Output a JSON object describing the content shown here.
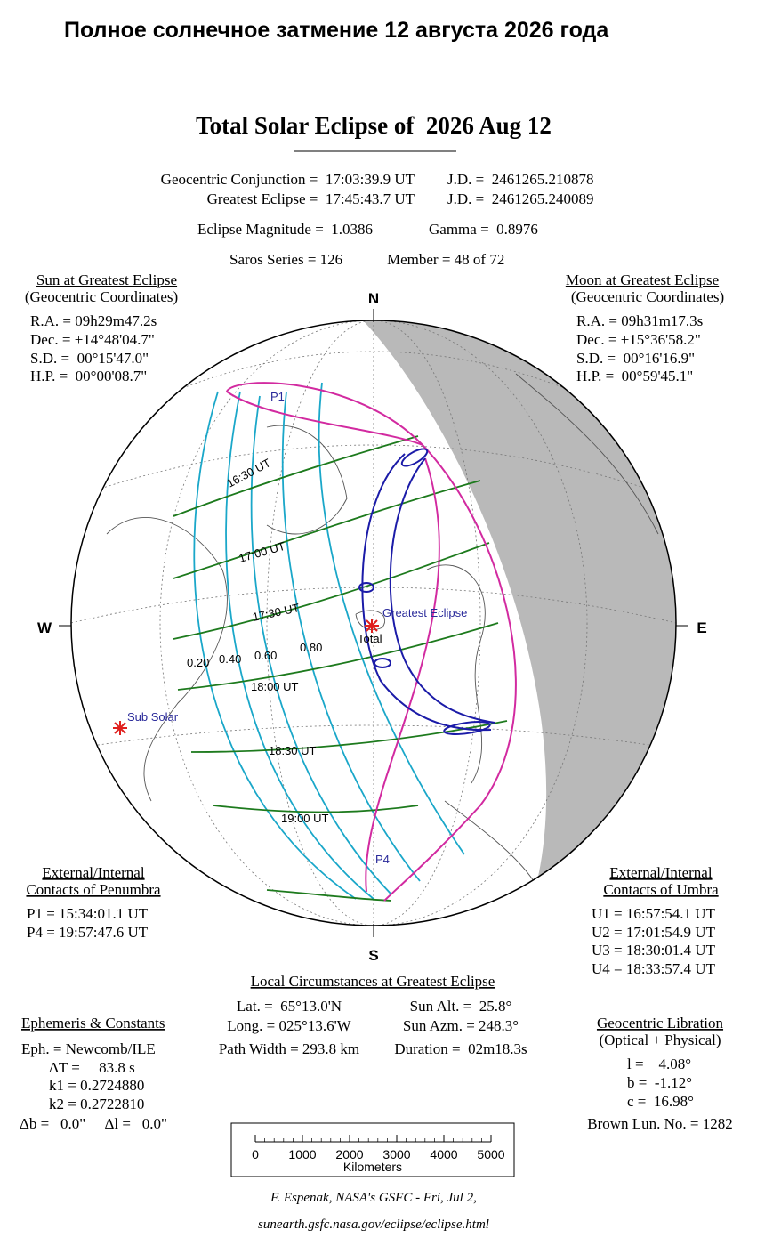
{
  "russian_title": "Полное солнечное затмение 12 августа 2026 года",
  "title": "Total Solar Eclipse of  2026 Aug 12",
  "summary": {
    "rows": [
      [
        "Geocentric Conjunction =  17:03:39.9 UT",
        "J.D. =  2461265.210878"
      ],
      [
        "Greatest Eclipse =  17:45:43.7 UT",
        "J.D. =  2461265.240089"
      ],
      [
        "Eclipse Magnitude =  1.0386",
        "Gamma =  0.8976"
      ],
      [
        "Saros Series = 126",
        "Member = 48 of 72"
      ]
    ]
  },
  "sun": {
    "title": "Sun at Greatest Eclipse",
    "subtitle": "(Geocentric Coordinates)",
    "lines": [
      "R.A. = 09h29m47.2s",
      "Dec. = +14°48'04.7\"",
      "S.D. =  00°15'47.0\"",
      "H.P. =  00°00'08.7\""
    ]
  },
  "moon": {
    "title": "Moon at Greatest Eclipse",
    "subtitle": "(Geocentric Coordinates)",
    "lines": [
      "R.A. = 09h31m17.3s",
      "Dec. = +15°36'58.2\"",
      "S.D. =  00°16'16.9\"",
      "H.P. =  00°59'45.1\""
    ]
  },
  "map": {
    "compass": {
      "n": "N",
      "s": "S",
      "w": "W",
      "e": "E"
    },
    "greatest_eclipse": "Greatest Eclipse",
    "total": "Total",
    "sub_solar": "Sub Solar",
    "p1": "P1",
    "p4": "P4",
    "times": [
      "16:30 UT",
      "17:00 UT",
      "17:30 UT",
      "18:00 UT",
      "18:30 UT",
      "19:00 UT"
    ],
    "magnitudes": [
      "0.20",
      "0.40",
      "0.60",
      "0.80"
    ]
  },
  "penumbra": {
    "title": [
      "External/Internal",
      "Contacts of Penumbra"
    ],
    "lines": [
      "P1 = 15:34:01.1 UT",
      "P4 = 19:57:47.6 UT"
    ]
  },
  "umbra": {
    "title": [
      "External/Internal",
      "Contacts of Umbra"
    ],
    "lines": [
      "U1 = 16:57:54.1 UT",
      "U2 = 17:01:54.9 UT",
      "U3 = 18:30:01.4 UT",
      "U4 = 18:33:57.4 UT"
    ]
  },
  "local": {
    "title": "Local Circumstances at Greatest Eclipse",
    "rows": [
      [
        "Lat. =  65°13.0'N",
        "Sun Alt. =  25.8°"
      ],
      [
        "Long. = 025°13.6'W",
        "Sun Azm. = 248.3°"
      ],
      [
        "Path Width = 293.8 km",
        "Duration =  02m18.3s"
      ]
    ]
  },
  "ephemeris": {
    "title": "Ephemeris & Constants",
    "lines": [
      "Eph. = Newcomb/ILE",
      "ΔT =     83.8 s",
      "k1 = 0.2724880",
      "k2 = 0.2722810",
      "Δb =   0.0\"     Δl =   0.0\""
    ]
  },
  "libration": {
    "title": "Geocentric Libration",
    "subtitle": "(Optical + Physical)",
    "lines": [
      "l =    4.08°",
      "b =  -1.12°",
      "c =  16.98°"
    ],
    "brown": "Brown Lun. No. = 1282"
  },
  "scale": {
    "ticks": [
      0,
      1000,
      2000,
      3000,
      4000,
      5000
    ],
    "max": 5000,
    "label": "Kilometers"
  },
  "footer": [
    "F. Espenak, NASA's GSFC - Fri, Jul 2,",
    "sunearth.gsfc.nasa.gov/eclipse/eclipse.html"
  ]
}
